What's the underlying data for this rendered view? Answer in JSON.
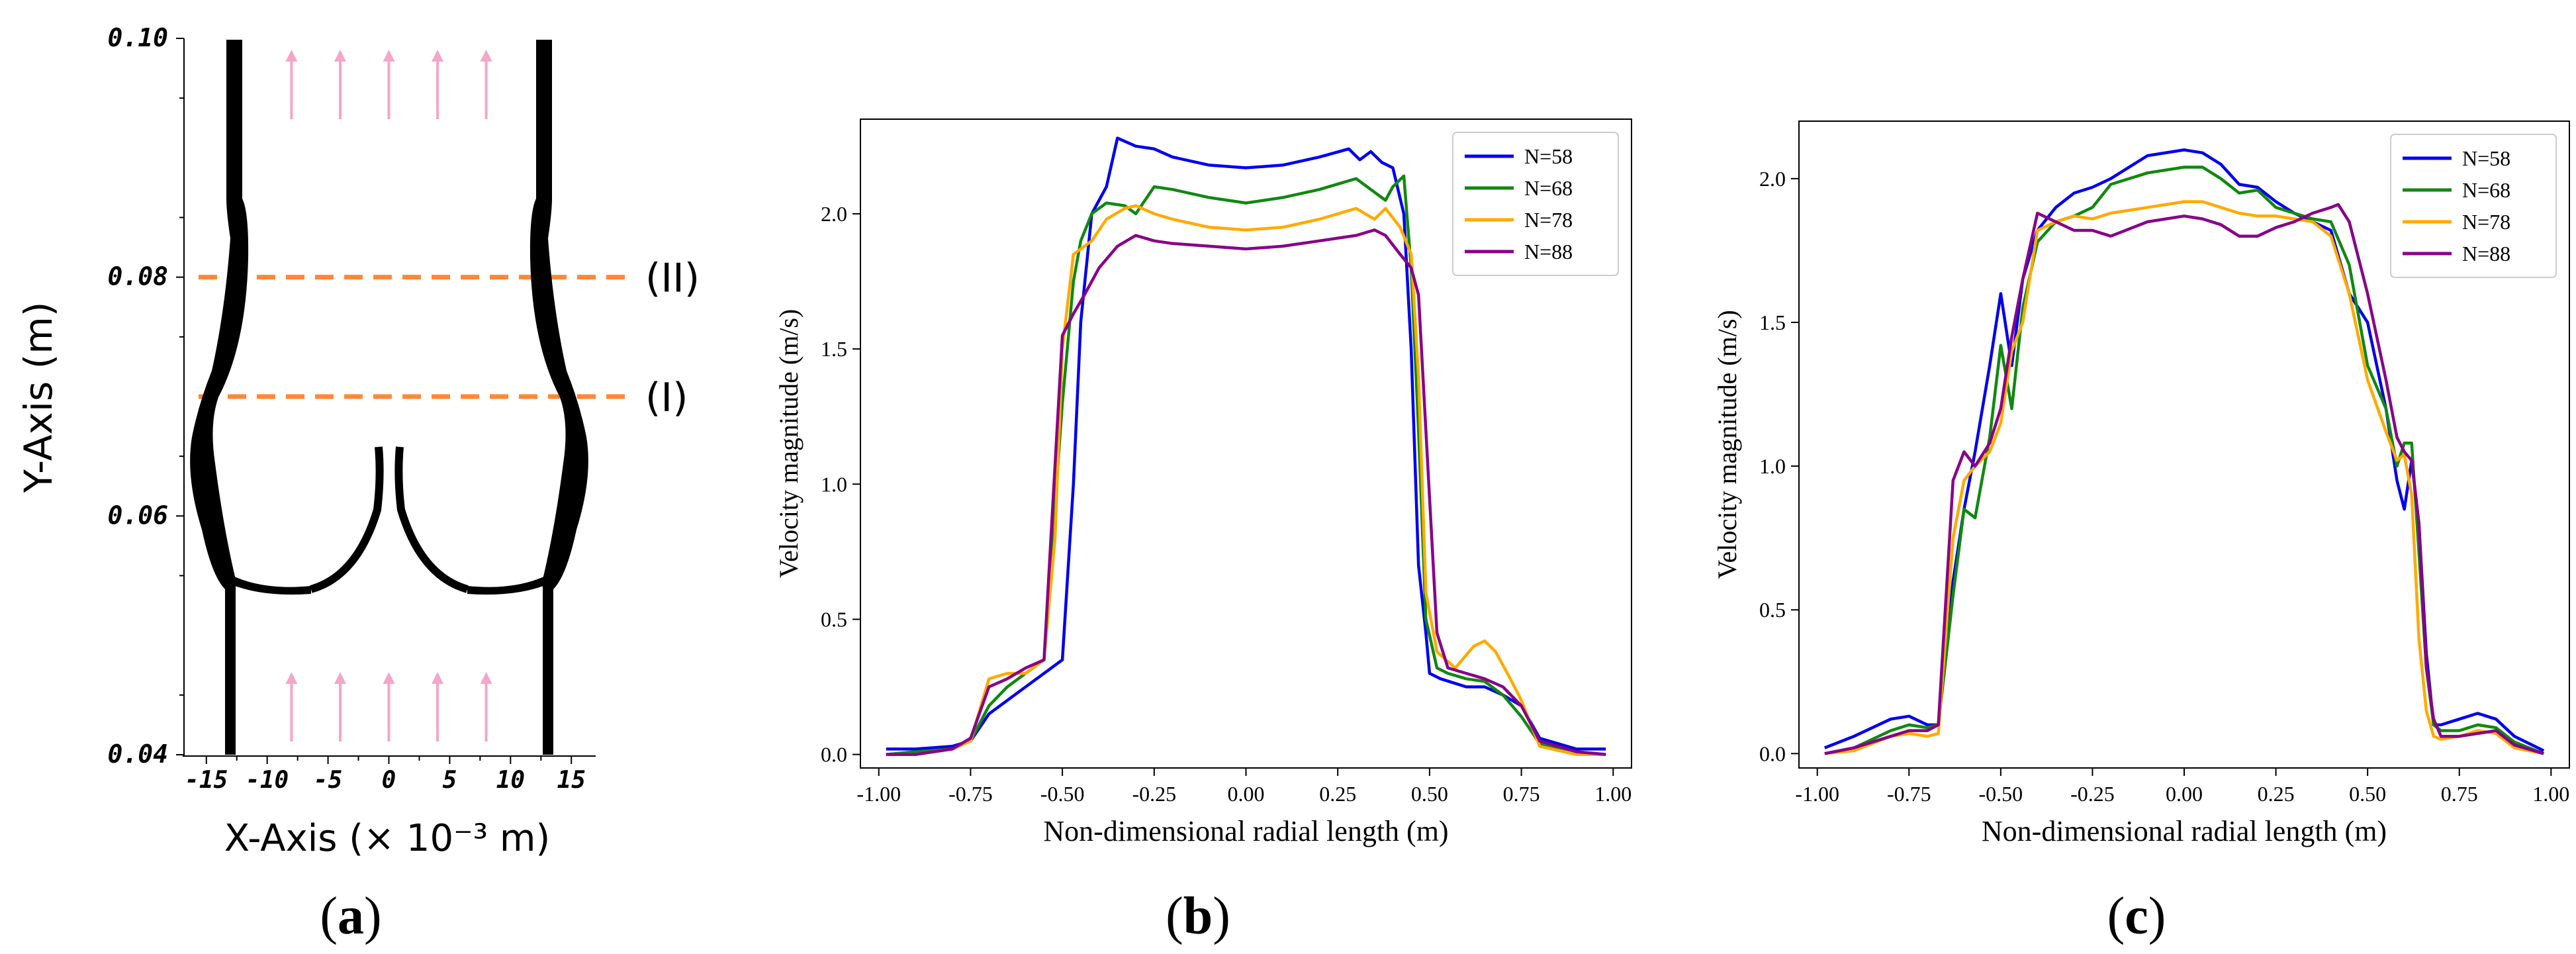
{
  "panels": {
    "a": {
      "label": "(a)",
      "letter": "a"
    },
    "b": {
      "label": "(b)",
      "letter": "b"
    },
    "c": {
      "label": "(c)",
      "letter": "c"
    }
  },
  "colors": {
    "N58": "#0000ee",
    "N68": "#118811",
    "N78": "#ffaa00",
    "N88": "#880088",
    "section_line": "#ff8833",
    "flow_arrow": "#f4a6c8"
  },
  "chart_data": [
    {
      "type": "diagram",
      "panel": "a",
      "xlabel": "X-Axis (× 10⁻³ m)",
      "ylabel": "Y-Axis (m)",
      "xticks": [
        "-15",
        "-10",
        "-5",
        "0",
        "5",
        "10",
        "15"
      ],
      "xtick_values": [
        -15,
        -10,
        -5,
        0,
        5,
        10,
        15
      ],
      "yticks": [
        "0.04",
        "0.06",
        "0.08",
        "0.10"
      ],
      "ytick_values": [
        0.04,
        0.06,
        0.08,
        0.1
      ],
      "xlim": [
        -17,
        17
      ],
      "ylim": [
        0.04,
        0.1
      ],
      "sections": [
        {
          "label": "(II)",
          "y": 0.08
        },
        {
          "label": "(I)",
          "y": 0.07
        }
      ],
      "flow_arrows_x": [
        -8,
        -4,
        0,
        4,
        8
      ]
    },
    {
      "type": "line",
      "panel": "b",
      "xlabel": "Non-dimensional radial length (m)",
      "ylabel": "Velocity magnitude (m/s)",
      "xlim": [
        -1.05,
        1.05
      ],
      "ylim": [
        -0.05,
        2.35
      ],
      "xticks": [
        "-1.00",
        "-0.75",
        "-0.50",
        "-0.25",
        "0.00",
        "0.25",
        "0.50",
        "0.75",
        "1.00"
      ],
      "xtick_values": [
        -1.0,
        -0.75,
        -0.5,
        -0.25,
        0.0,
        0.25,
        0.5,
        0.75,
        1.0
      ],
      "yticks": [
        "0.0",
        "0.5",
        "1.0",
        "1.5",
        "2.0"
      ],
      "ytick_values": [
        0.0,
        0.5,
        1.0,
        1.5,
        2.0
      ],
      "legend_position": "top-right",
      "series": [
        {
          "name": "N=58",
          "color": "#0000ee",
          "x": [
            -0.98,
            -0.9,
            -0.8,
            -0.75,
            -0.7,
            -0.65,
            -0.6,
            -0.55,
            -0.5,
            -0.47,
            -0.45,
            -0.42,
            -0.38,
            -0.35,
            -0.3,
            -0.25,
            -0.2,
            -0.1,
            0.0,
            0.1,
            0.2,
            0.28,
            0.31,
            0.34,
            0.37,
            0.4,
            0.43,
            0.45,
            0.47,
            0.49,
            0.5,
            0.53,
            0.6,
            0.65,
            0.7,
            0.75,
            0.8,
            0.9,
            0.98
          ],
          "y": [
            0.02,
            0.02,
            0.03,
            0.05,
            0.15,
            0.2,
            0.25,
            0.3,
            0.35,
            1.0,
            1.6,
            2.0,
            2.1,
            2.28,
            2.25,
            2.24,
            2.21,
            2.18,
            2.17,
            2.18,
            2.21,
            2.24,
            2.2,
            2.23,
            2.19,
            2.17,
            2.0,
            1.5,
            0.7,
            0.45,
            0.3,
            0.28,
            0.25,
            0.25,
            0.22,
            0.18,
            0.06,
            0.02,
            0.02
          ]
        },
        {
          "name": "N=68",
          "color": "#118811",
          "x": [
            -0.98,
            -0.9,
            -0.8,
            -0.75,
            -0.7,
            -0.65,
            -0.6,
            -0.55,
            -0.5,
            -0.47,
            -0.45,
            -0.42,
            -0.38,
            -0.33,
            -0.3,
            -0.25,
            -0.2,
            -0.1,
            0.0,
            0.1,
            0.2,
            0.3,
            0.35,
            0.38,
            0.4,
            0.43,
            0.45,
            0.47,
            0.49,
            0.52,
            0.55,
            0.6,
            0.65,
            0.7,
            0.75,
            0.8,
            0.9,
            0.98
          ],
          "y": [
            0.0,
            0.01,
            0.02,
            0.05,
            0.18,
            0.25,
            0.3,
            0.35,
            1.3,
            1.75,
            1.9,
            2.0,
            2.04,
            2.03,
            2.0,
            2.1,
            2.09,
            2.06,
            2.04,
            2.06,
            2.09,
            2.13,
            2.08,
            2.05,
            2.1,
            2.14,
            1.8,
            1.2,
            0.5,
            0.32,
            0.3,
            0.28,
            0.27,
            0.22,
            0.14,
            0.04,
            0.01,
            0.0
          ]
        },
        {
          "name": "N=78",
          "color": "#ffaa00",
          "x": [
            -0.98,
            -0.9,
            -0.8,
            -0.75,
            -0.7,
            -0.65,
            -0.6,
            -0.55,
            -0.52,
            -0.5,
            -0.47,
            -0.42,
            -0.38,
            -0.33,
            -0.3,
            -0.25,
            -0.2,
            -0.1,
            0.0,
            0.1,
            0.2,
            0.3,
            0.35,
            0.38,
            0.42,
            0.45,
            0.47,
            0.49,
            0.52,
            0.57,
            0.62,
            0.65,
            0.68,
            0.72,
            0.75,
            0.8,
            0.9,
            0.98
          ],
          "y": [
            0.0,
            0.0,
            0.02,
            0.05,
            0.28,
            0.3,
            0.3,
            0.35,
            0.8,
            1.5,
            1.85,
            1.9,
            1.98,
            2.02,
            2.03,
            2.0,
            1.98,
            1.95,
            1.94,
            1.95,
            1.98,
            2.02,
            1.98,
            2.02,
            1.95,
            1.85,
            1.4,
            0.6,
            0.38,
            0.32,
            0.4,
            0.42,
            0.38,
            0.28,
            0.2,
            0.03,
            0.0,
            0.0
          ]
        },
        {
          "name": "N=88",
          "color": "#880088",
          "x": [
            -0.98,
            -0.9,
            -0.8,
            -0.75,
            -0.7,
            -0.65,
            -0.6,
            -0.55,
            -0.5,
            -0.47,
            -0.44,
            -0.4,
            -0.35,
            -0.3,
            -0.25,
            -0.2,
            -0.1,
            0.0,
            0.1,
            0.2,
            0.3,
            0.35,
            0.38,
            0.42,
            0.45,
            0.47,
            0.49,
            0.52,
            0.55,
            0.6,
            0.65,
            0.7,
            0.75,
            0.8,
            0.9,
            0.98
          ],
          "y": [
            0.0,
            0.0,
            0.02,
            0.06,
            0.25,
            0.28,
            0.32,
            0.35,
            1.55,
            1.63,
            1.7,
            1.8,
            1.88,
            1.92,
            1.9,
            1.89,
            1.88,
            1.87,
            1.88,
            1.9,
            1.92,
            1.94,
            1.92,
            1.85,
            1.8,
            1.7,
            1.2,
            0.45,
            0.32,
            0.3,
            0.28,
            0.25,
            0.18,
            0.05,
            0.01,
            0.0
          ]
        }
      ]
    },
    {
      "type": "line",
      "panel": "c",
      "xlabel": "Non-dimensional radial length (m)",
      "ylabel": "Velocity magnitude (m/s)",
      "xlim": [
        -1.05,
        1.05
      ],
      "ylim": [
        -0.05,
        2.2
      ],
      "xticks": [
        "-1.00",
        "-0.75",
        "-0.50",
        "-0.25",
        "0.00",
        "0.25",
        "0.50",
        "0.75",
        "1.00"
      ],
      "xtick_values": [
        -1.0,
        -0.75,
        -0.5,
        -0.25,
        0.0,
        0.25,
        0.5,
        0.75,
        1.0
      ],
      "yticks": [
        "0.0",
        "0.5",
        "1.0",
        "1.5",
        "2.0"
      ],
      "ytick_values": [
        0.0,
        0.5,
        1.0,
        1.5,
        2.0
      ],
      "legend_position": "top-right",
      "series": [
        {
          "name": "N=58",
          "color": "#0000ee",
          "x": [
            -0.98,
            -0.9,
            -0.8,
            -0.75,
            -0.7,
            -0.67,
            -0.63,
            -0.6,
            -0.57,
            -0.53,
            -0.5,
            -0.47,
            -0.44,
            -0.4,
            -0.35,
            -0.3,
            -0.25,
            -0.2,
            -0.1,
            0.0,
            0.05,
            0.1,
            0.15,
            0.2,
            0.25,
            0.3,
            0.35,
            0.4,
            0.45,
            0.5,
            0.55,
            0.58,
            0.6,
            0.62,
            0.64,
            0.66,
            0.68,
            0.7,
            0.75,
            0.8,
            0.85,
            0.9,
            0.98
          ],
          "y": [
            0.02,
            0.06,
            0.12,
            0.13,
            0.1,
            0.1,
            0.6,
            0.85,
            1.05,
            1.35,
            1.6,
            1.35,
            1.65,
            1.82,
            1.9,
            1.95,
            1.97,
            2.0,
            2.08,
            2.1,
            2.09,
            2.05,
            1.98,
            1.97,
            1.92,
            1.88,
            1.85,
            1.82,
            1.6,
            1.5,
            1.2,
            0.95,
            0.85,
            1.02,
            0.8,
            0.35,
            0.1,
            0.1,
            0.12,
            0.14,
            0.12,
            0.06,
            0.01
          ]
        },
        {
          "name": "N=68",
          "color": "#118811",
          "x": [
            -0.98,
            -0.9,
            -0.8,
            -0.75,
            -0.7,
            -0.67,
            -0.63,
            -0.6,
            -0.57,
            -0.53,
            -0.5,
            -0.47,
            -0.44,
            -0.4,
            -0.35,
            -0.3,
            -0.25,
            -0.2,
            -0.1,
            0.0,
            0.05,
            0.1,
            0.15,
            0.2,
            0.25,
            0.3,
            0.35,
            0.4,
            0.45,
            0.5,
            0.55,
            0.58,
            0.6,
            0.62,
            0.64,
            0.66,
            0.68,
            0.7,
            0.75,
            0.8,
            0.85,
            0.9,
            0.98
          ],
          "y": [
            0.0,
            0.02,
            0.08,
            0.1,
            0.09,
            0.1,
            0.55,
            0.85,
            0.82,
            1.1,
            1.42,
            1.2,
            1.55,
            1.78,
            1.85,
            1.87,
            1.9,
            1.98,
            2.02,
            2.04,
            2.04,
            2.0,
            1.95,
            1.96,
            1.9,
            1.88,
            1.86,
            1.85,
            1.7,
            1.35,
            1.2,
            1.0,
            1.08,
            1.08,
            0.7,
            0.3,
            0.1,
            0.08,
            0.08,
            0.1,
            0.09,
            0.04,
            0.0
          ]
        },
        {
          "name": "N=78",
          "color": "#ffaa00",
          "x": [
            -0.98,
            -0.9,
            -0.8,
            -0.75,
            -0.7,
            -0.67,
            -0.63,
            -0.6,
            -0.57,
            -0.53,
            -0.5,
            -0.47,
            -0.44,
            -0.4,
            -0.35,
            -0.3,
            -0.25,
            -0.2,
            -0.1,
            0.0,
            0.05,
            0.1,
            0.15,
            0.2,
            0.25,
            0.3,
            0.35,
            0.4,
            0.45,
            0.5,
            0.55,
            0.58,
            0.6,
            0.62,
            0.64,
            0.66,
            0.68,
            0.7,
            0.75,
            0.8,
            0.85,
            0.9,
            0.98
          ],
          "y": [
            0.0,
            0.01,
            0.06,
            0.07,
            0.06,
            0.07,
            0.75,
            0.95,
            1.0,
            1.05,
            1.15,
            1.4,
            1.5,
            1.82,
            1.85,
            1.87,
            1.86,
            1.88,
            1.9,
            1.92,
            1.92,
            1.9,
            1.88,
            1.87,
            1.87,
            1.86,
            1.85,
            1.8,
            1.6,
            1.3,
            1.12,
            1.02,
            1.04,
            0.9,
            0.4,
            0.15,
            0.06,
            0.05,
            0.06,
            0.08,
            0.07,
            0.02,
            0.0
          ]
        },
        {
          "name": "N=88",
          "color": "#880088",
          "x": [
            -0.98,
            -0.9,
            -0.8,
            -0.75,
            -0.7,
            -0.67,
            -0.63,
            -0.6,
            -0.57,
            -0.53,
            -0.5,
            -0.47,
            -0.44,
            -0.4,
            -0.35,
            -0.3,
            -0.25,
            -0.2,
            -0.1,
            0.0,
            0.05,
            0.1,
            0.15,
            0.2,
            0.25,
            0.3,
            0.35,
            0.4,
            0.42,
            0.45,
            0.5,
            0.55,
            0.58,
            0.6,
            0.62,
            0.64,
            0.66,
            0.68,
            0.7,
            0.75,
            0.8,
            0.85,
            0.9,
            0.98
          ],
          "y": [
            0.0,
            0.02,
            0.06,
            0.08,
            0.08,
            0.1,
            0.95,
            1.05,
            1.0,
            1.08,
            1.2,
            1.45,
            1.65,
            1.88,
            1.85,
            1.82,
            1.82,
            1.8,
            1.85,
            1.87,
            1.86,
            1.84,
            1.8,
            1.8,
            1.83,
            1.85,
            1.88,
            1.9,
            1.91,
            1.85,
            1.6,
            1.3,
            1.1,
            1.05,
            1.02,
            0.8,
            0.3,
            0.12,
            0.06,
            0.06,
            0.07,
            0.08,
            0.03,
            0.0
          ]
        }
      ]
    }
  ]
}
